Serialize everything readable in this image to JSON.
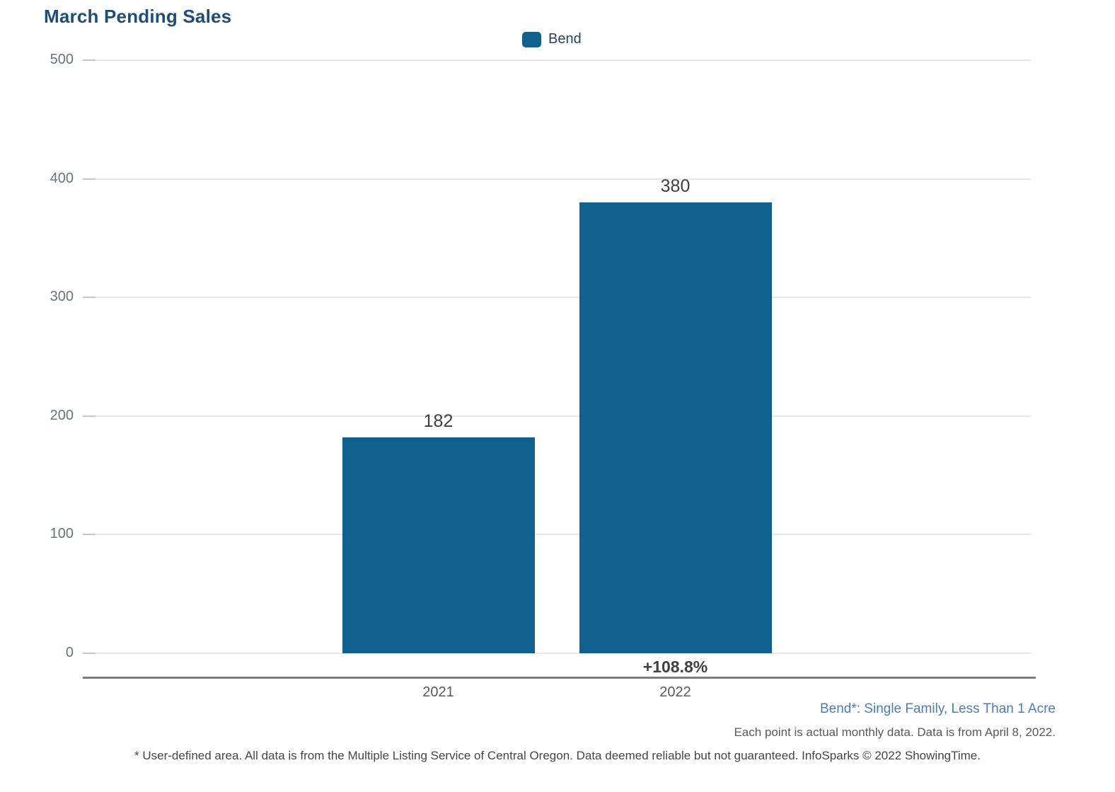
{
  "title": "March Pending Sales",
  "legend": {
    "label": "Bend",
    "swatch_color": "#11618f"
  },
  "chart_data": {
    "type": "bar",
    "title": "March Pending Sales",
    "categories": [
      "2021",
      "2022"
    ],
    "series": [
      {
        "name": "Bend",
        "values": [
          182,
          380
        ]
      }
    ],
    "change_label": "+108.8%",
    "change_label_category": "2022",
    "ylim": [
      0,
      500
    ],
    "yticks": [
      0,
      100,
      200,
      300,
      400,
      500
    ],
    "bar_color": "#11618f",
    "grid": true,
    "legend_position": "top-center"
  },
  "footer": {
    "series_note": "Bend*: Single Family, Less Than 1 Acre",
    "data_note": "Each point is actual monthly data. Data is from April 8, 2022.",
    "disclaimer": "* User-defined area. All data is from the Multiple Listing Service of Central Oregon. Data deemed reliable but not guaranteed. InfoSparks © 2022 ShowingTime."
  }
}
